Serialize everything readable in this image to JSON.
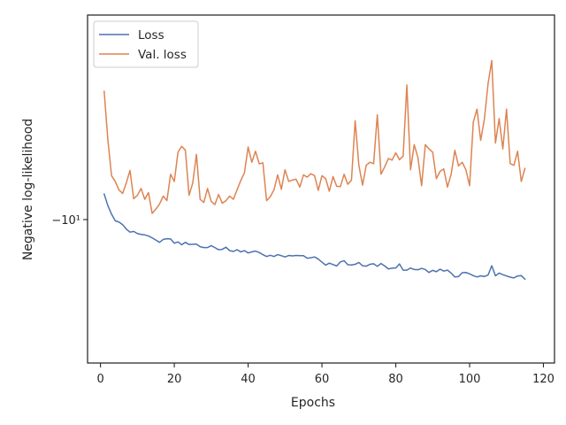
{
  "chart_data": {
    "type": "line",
    "title": "",
    "xlabel": "Epochs",
    "ylabel": "Negative log-likelihood",
    "xlim": [
      -3.5,
      123
    ],
    "x_ticks": [
      0,
      20,
      40,
      60,
      80,
      100,
      120
    ],
    "x_tick_labels": [
      "0",
      "20",
      "40",
      "60",
      "80",
      "100",
      "120"
    ],
    "y_scale": "symlog",
    "y_ticks": [
      -10
    ],
    "y_tick_labels": [
      "−10¹"
    ],
    "grid": false,
    "legend": {
      "position": "top-left",
      "entries": [
        "Loss",
        "Val. loss"
      ]
    },
    "colors": {
      "Loss": "#4c72b0",
      "Val. loss": "#dd8452"
    },
    "x": [
      1,
      2,
      3,
      4,
      5,
      6,
      7,
      8,
      9,
      10,
      11,
      12,
      13,
      14,
      15,
      16,
      17,
      18,
      19,
      20,
      21,
      22,
      23,
      24,
      25,
      26,
      27,
      28,
      29,
      30,
      31,
      32,
      33,
      34,
      35,
      36,
      37,
      38,
      39,
      40,
      41,
      42,
      43,
      44,
      45,
      46,
      47,
      48,
      49,
      50,
      51,
      52,
      53,
      54,
      55,
      56,
      57,
      58,
      59,
      60,
      61,
      62,
      63,
      64,
      65,
      66,
      67,
      68,
      69,
      70,
      71,
      72,
      73,
      74,
      75,
      76,
      77,
      78,
      79,
      80,
      81,
      82,
      83,
      84,
      85,
      86,
      87,
      88,
      89,
      90,
      91,
      92,
      93,
      94,
      95,
      96,
      97,
      98,
      99,
      100,
      101,
      102,
      103,
      104,
      105,
      106,
      107,
      108,
      109,
      110,
      111,
      112,
      113,
      114,
      115
    ],
    "series": [
      {
        "name": "Loss",
        "values": [
          -9.0,
          -9.44,
          -9.78,
          -10.05,
          -10.1,
          -10.21,
          -10.4,
          -10.53,
          -10.5,
          -10.59,
          -10.63,
          -10.65,
          -10.7,
          -10.78,
          -10.88,
          -10.98,
          -10.85,
          -10.82,
          -10.83,
          -11.02,
          -10.96,
          -11.09,
          -10.98,
          -11.08,
          -11.07,
          -11.06,
          -11.18,
          -11.22,
          -11.22,
          -11.13,
          -11.22,
          -11.32,
          -11.3,
          -11.2,
          -11.36,
          -11.4,
          -11.32,
          -11.42,
          -11.36,
          -11.47,
          -11.42,
          -11.38,
          -11.45,
          -11.55,
          -11.64,
          -11.58,
          -11.64,
          -11.55,
          -11.6,
          -11.66,
          -11.59,
          -11.61,
          -11.59,
          -11.6,
          -11.6,
          -11.72,
          -11.7,
          -11.66,
          -11.76,
          -11.91,
          -12.06,
          -11.96,
          -12.03,
          -12.1,
          -11.9,
          -11.84,
          -12.04,
          -12.05,
          -12.02,
          -11.93,
          -12.09,
          -12.11,
          -12.02,
          -11.99,
          -12.12,
          -11.98,
          -12.1,
          -12.25,
          -12.21,
          -12.2,
          -12.0,
          -12.31,
          -12.31,
          -12.2,
          -12.28,
          -12.29,
          -12.22,
          -12.28,
          -12.43,
          -12.32,
          -12.39,
          -12.26,
          -12.36,
          -12.31,
          -12.46,
          -12.66,
          -12.64,
          -12.44,
          -12.43,
          -12.5,
          -12.59,
          -12.66,
          -12.6,
          -12.64,
          -12.56,
          -12.09,
          -12.6,
          -12.46,
          -12.54,
          -12.61,
          -12.67,
          -12.71,
          -12.61,
          -12.59,
          -12.78
        ]
      },
      {
        "name": "Val. loss",
        "values": [
          -5.9,
          -7.2,
          -8.35,
          -8.55,
          -8.85,
          -8.98,
          -8.6,
          -8.17,
          -9.18,
          -9.05,
          -8.8,
          -9.2,
          -8.95,
          -9.75,
          -9.58,
          -9.38,
          -9.08,
          -9.25,
          -8.3,
          -8.55,
          -7.58,
          -7.4,
          -7.52,
          -9.05,
          -8.6,
          -7.65,
          -9.2,
          -9.32,
          -8.8,
          -9.28,
          -9.4,
          -9.02,
          -9.35,
          -9.25,
          -9.08,
          -9.2,
          -8.85,
          -8.52,
          -8.25,
          -7.42,
          -7.9,
          -7.55,
          -7.95,
          -7.92,
          -9.25,
          -9.1,
          -8.85,
          -8.32,
          -8.83,
          -8.15,
          -8.55,
          -8.5,
          -8.47,
          -8.75,
          -8.32,
          -8.4,
          -8.28,
          -8.35,
          -8.87,
          -8.35,
          -8.45,
          -8.9,
          -8.38,
          -8.72,
          -8.73,
          -8.3,
          -8.65,
          -8.5,
          -6.66,
          -8.0,
          -8.68,
          -8.0,
          -7.9,
          -7.95,
          -6.5,
          -8.3,
          -8.05,
          -7.78,
          -7.83,
          -7.6,
          -7.82,
          -7.7,
          -5.75,
          -8.15,
          -7.35,
          -7.75,
          -8.7,
          -7.35,
          -7.48,
          -7.58,
          -8.45,
          -8.2,
          -8.12,
          -8.75,
          -8.3,
          -7.52,
          -8.02,
          -7.9,
          -8.15,
          -8.7,
          -6.7,
          -6.35,
          -7.22,
          -6.62,
          -5.72,
          -5.2,
          -7.3,
          -6.6,
          -7.48,
          -6.35,
          -7.95,
          -8.0,
          -7.55,
          -8.55,
          -8.1
        ]
      }
    ]
  }
}
